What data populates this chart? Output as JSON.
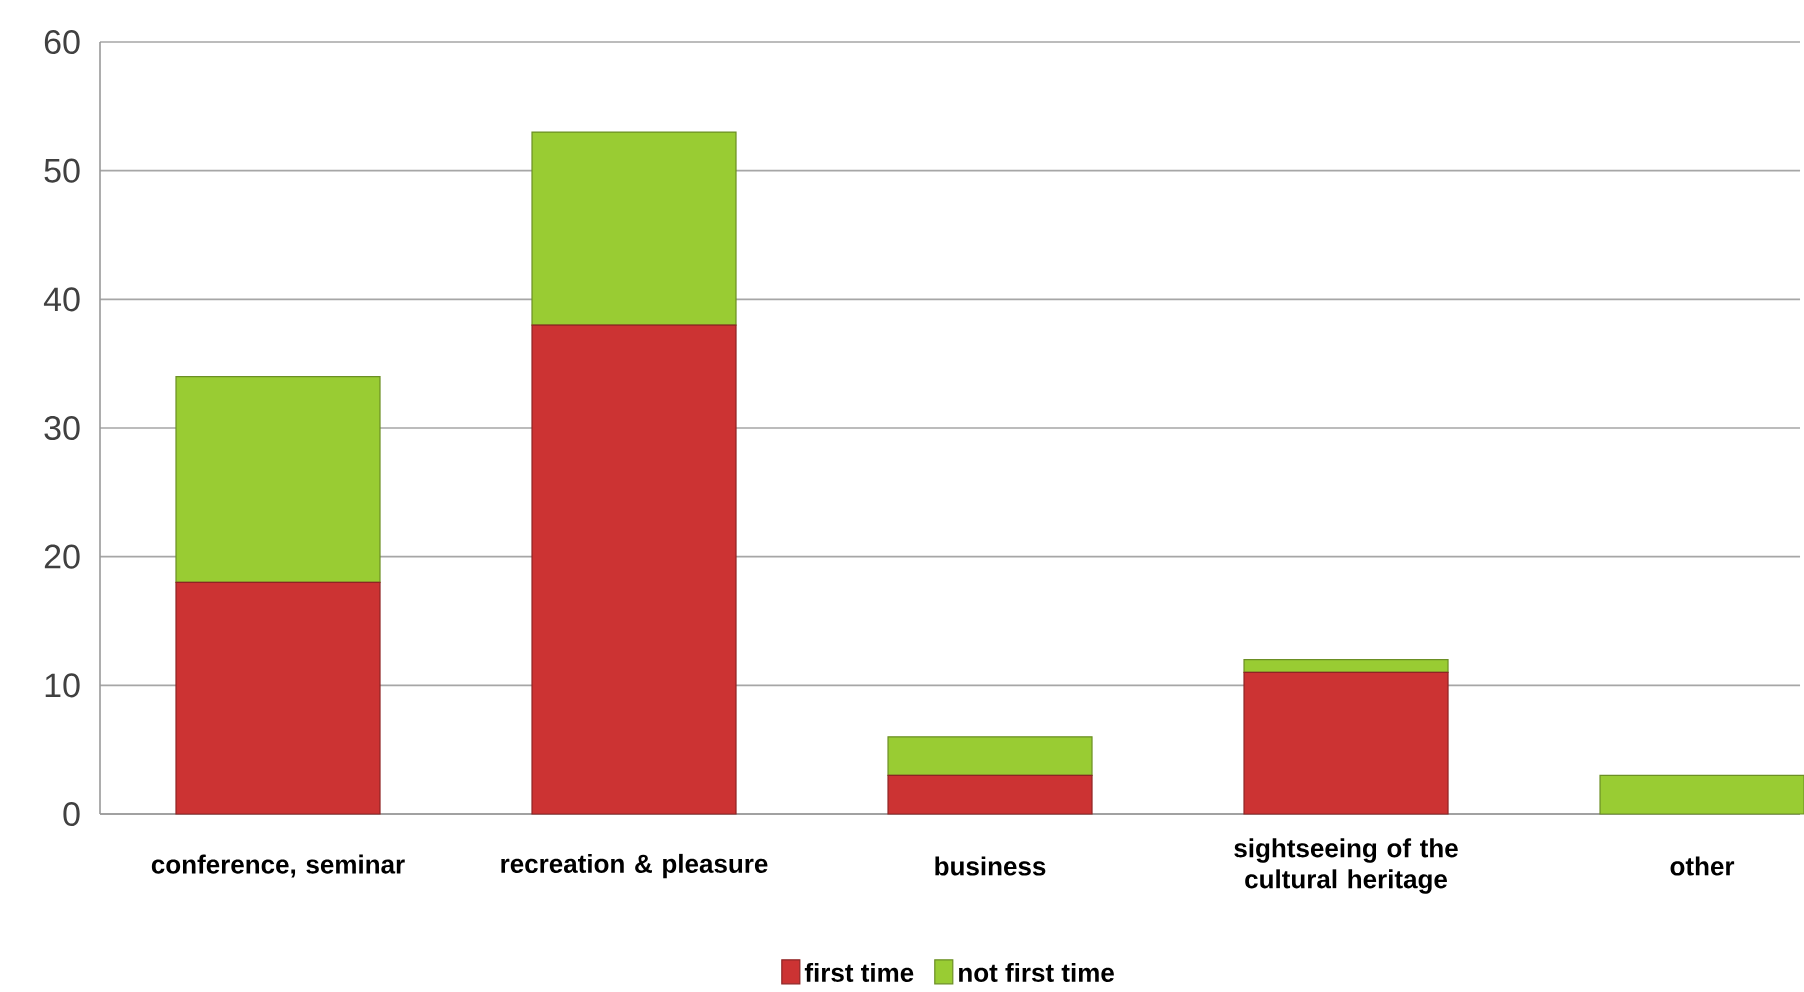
{
  "chart_data": {
    "type": "bar",
    "stacked": true,
    "categories": [
      "conference, seminar",
      "recreation & pleasure",
      "business",
      "sightseeing of the cultural heritage",
      "other"
    ],
    "series": [
      {
        "name": "first time",
        "color": "#cc3333",
        "values": [
          18,
          38,
          3,
          11,
          0
        ]
      },
      {
        "name": "not first time",
        "color": "#99cc33",
        "values": [
          16,
          15,
          3,
          1,
          3
        ]
      }
    ],
    "ylim": [
      0,
      60
    ],
    "yticks": [
      0,
      10,
      20,
      30,
      40,
      50,
      60
    ],
    "grid": "y",
    "legend": "bottom"
  }
}
